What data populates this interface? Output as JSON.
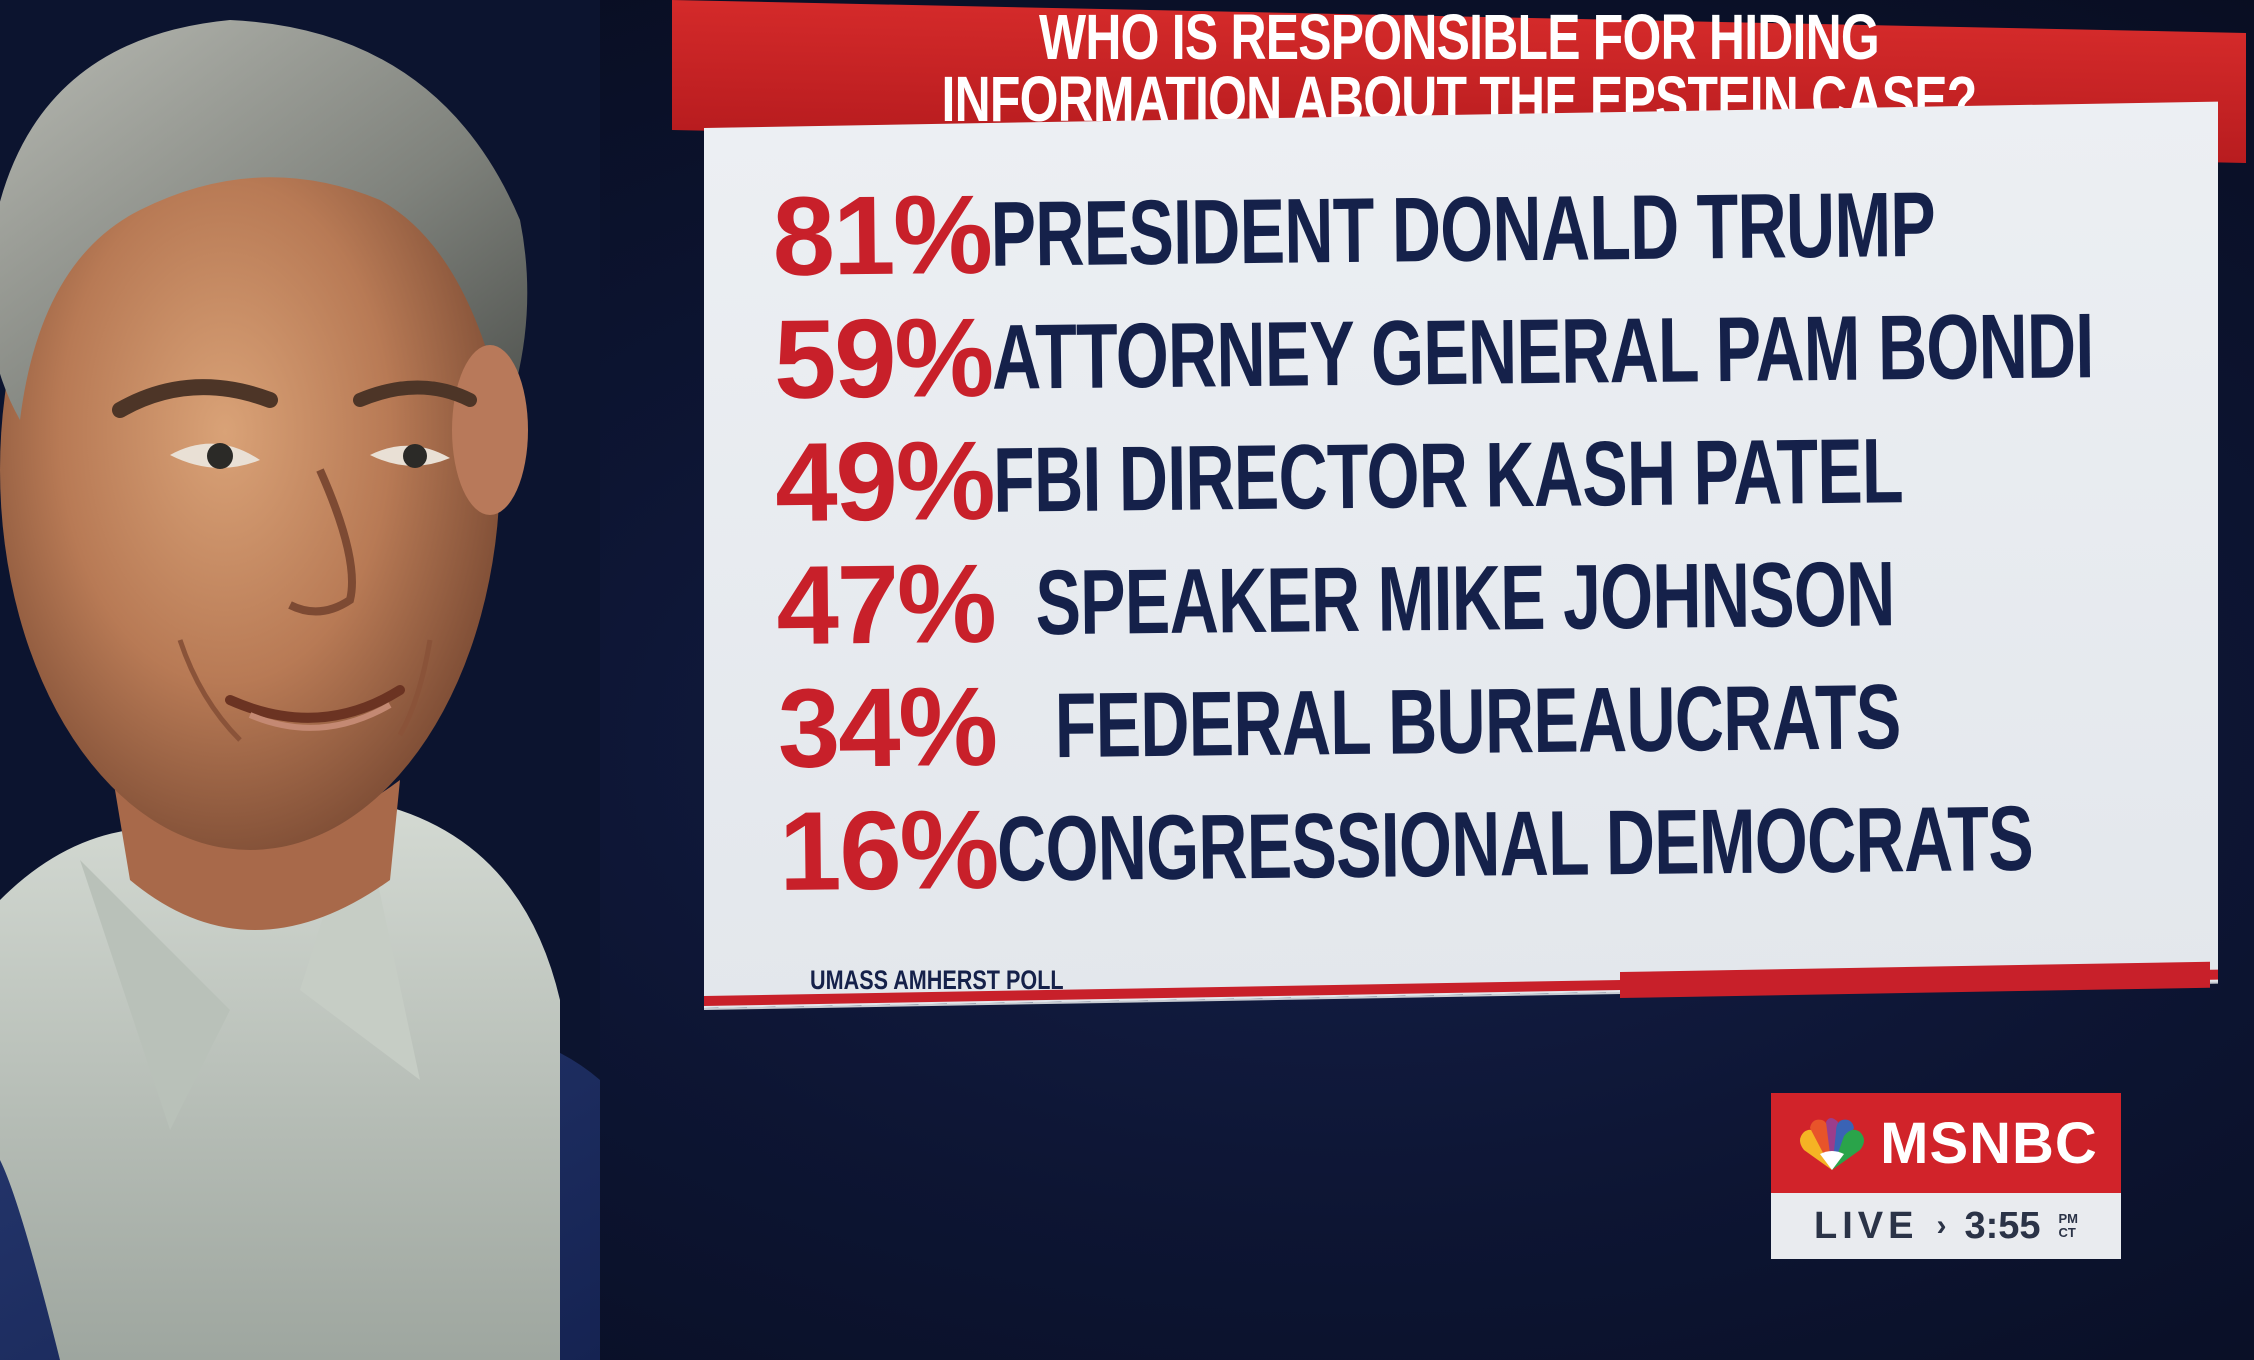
{
  "header": {
    "line1": "WHO IS RESPONSIBLE FOR HIDING",
    "line2": "INFORMATION ABOUT THE EPSTEIN CASE?"
  },
  "rows": [
    {
      "percent": "81%",
      "label": "PRESIDENT DONALD TRUMP"
    },
    {
      "percent": "59%",
      "label": "ATTORNEY GENERAL PAM BONDI"
    },
    {
      "percent": "49%",
      "label": "FBI DIRECTOR KASH PATEL"
    },
    {
      "percent": "47%",
      "label": "SPEAKER MIKE JOHNSON"
    },
    {
      "percent": "34%",
      "label": "FEDERAL BUREAUCRATS"
    },
    {
      "percent": "16%",
      "label": "CONGRESSIONAL DEMOCRATS"
    }
  ],
  "source": "UMASS AMHERST POLL",
  "bug": {
    "network": "MSNBC",
    "live": "LIVE",
    "chevron": "›",
    "time": "3:55",
    "ampm": "PM",
    "zone": "CT",
    "logo_icon": "peacock-icon"
  },
  "colors": {
    "accent_red": "#c8202a",
    "navy_text": "#15214a",
    "panel": "#e6e9ee",
    "background": "#0d1533"
  }
}
